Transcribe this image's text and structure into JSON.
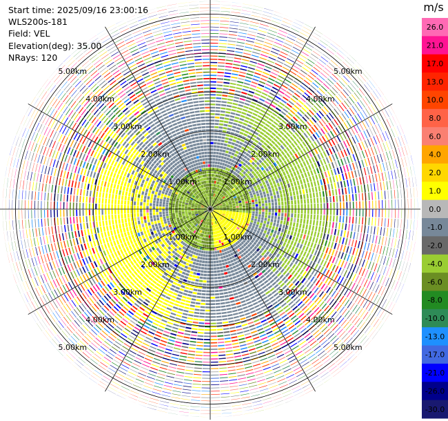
{
  "header": {
    "start_time": "Start time: 2025/09/16 23:00:16",
    "instrument": "WLS200s-181",
    "field": "Field: VEL",
    "elevation": "Elevation(deg): 35.00",
    "nrays": "NRays: 120"
  },
  "chart_data": {
    "type": "heatmap",
    "projection": "polar PPI",
    "field": "VEL",
    "elevation_deg": 35.0,
    "n_rays": 120,
    "range_rings_km": [
      1.0,
      2.0,
      3.0,
      4.0,
      5.0
    ],
    "max_range_km": 5.4,
    "ring_labels_left": [
      "1.00km",
      "2.00km",
      "3.00km",
      "4.00km",
      "5.00km"
    ],
    "ring_labels_right": [
      "1.00km",
      "2.00km",
      "3.00km",
      "4.00km",
      "5.00km"
    ],
    "colorbar": {
      "title": "m/s",
      "tick_labels": [
        "26.0",
        "21.0",
        "17.0",
        "13.0",
        "10.0",
        "8.0",
        "6.0",
        "4.0",
        "2.0",
        "1.0",
        "0.0",
        "-1.0",
        "-2.0",
        "-4.0",
        "-6.0",
        "-8.0",
        "-10.0",
        "-13.0",
        "-17.0",
        "-21.0",
        "-26.0",
        "-30.0"
      ],
      "colors": [
        "#ff69b4",
        "#ff1493",
        "#ff0000",
        "#ff2400",
        "#ff4500",
        "#ff6347",
        "#fa8072",
        "#ffa500",
        "#ffd700",
        "#ffff00",
        "#b8b8b8",
        "#778899",
        "#696969",
        "#9acd32",
        "#6b8e23",
        "#228b22",
        "#2e8b57",
        "#1e90ff",
        "#4169e1",
        "#0000ff",
        "#00008b",
        "#191970"
      ]
    },
    "velocity_pattern": {
      "inner_positive_lobe_color": "#ffff00",
      "inner_negative_lobe_color": "#9acd32",
      "near_zero_color": "#778899",
      "outer_region": "noise"
    }
  }
}
